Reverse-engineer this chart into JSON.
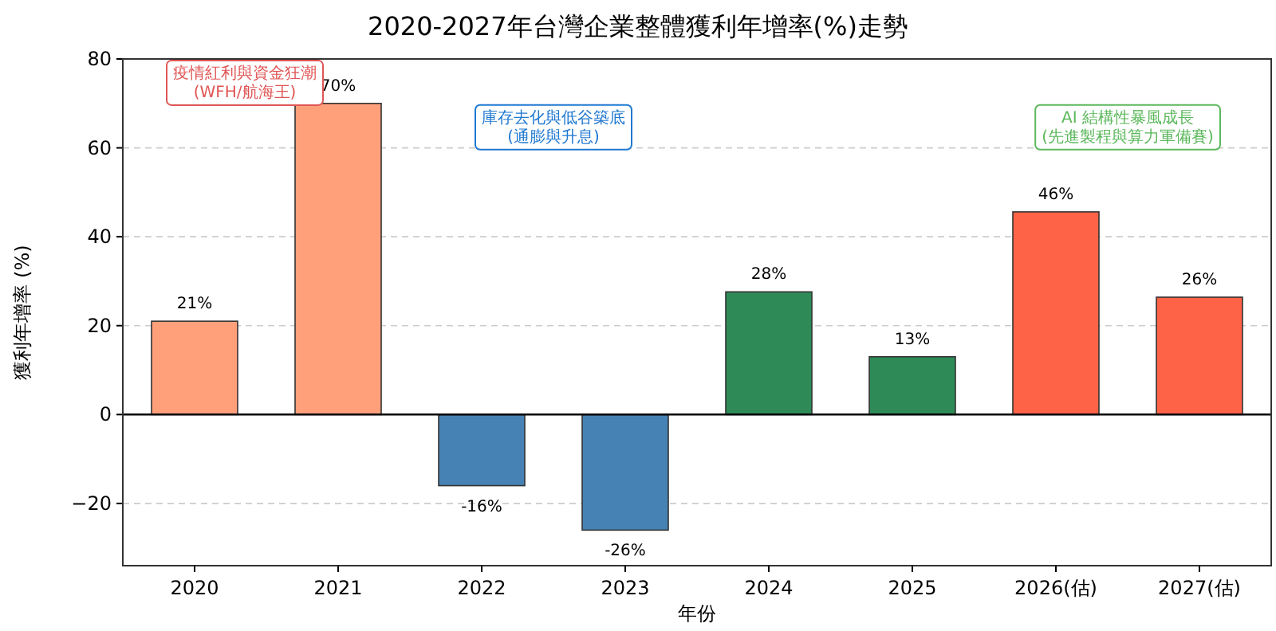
{
  "chart_data": {
    "type": "bar",
    "title": "2020-2027年台灣企業整體獲利年增率(%)走勢",
    "xlabel": "年份",
    "ylabel": "獲利年增率 (%)",
    "categories": [
      "2020",
      "2021",
      "2022",
      "2023",
      "2024",
      "2025",
      "2026(估)",
      "2027(估)"
    ],
    "values": [
      21,
      70,
      -16,
      -26,
      27.6,
      13,
      45.6,
      26.4
    ],
    "value_labels": [
      "21%",
      "70%",
      "-16%",
      "-26%",
      "28%",
      "13%",
      "46%",
      "26%"
    ],
    "colors": [
      "#ffa07a",
      "#ffa07a",
      "#4682b4",
      "#4682b4",
      "#2e8b57",
      "#2e8b57",
      "#ff6347",
      "#ff6347"
    ],
    "ylim": [
      -34,
      80
    ],
    "yticks": [
      -20,
      0,
      20,
      40,
      60,
      80
    ],
    "grid": "y",
    "ref_lines": [
      {
        "axis": "y",
        "value": 0,
        "color": "#000000"
      }
    ],
    "annotations": [
      "疫情紅利與資金狂潮\n(WFH/航海王)",
      "庫存去化與低谷築底\n(通膨與升息)",
      "AI 結構性暴風成長\n(先進製程與算力軍備賽)"
    ]
  }
}
